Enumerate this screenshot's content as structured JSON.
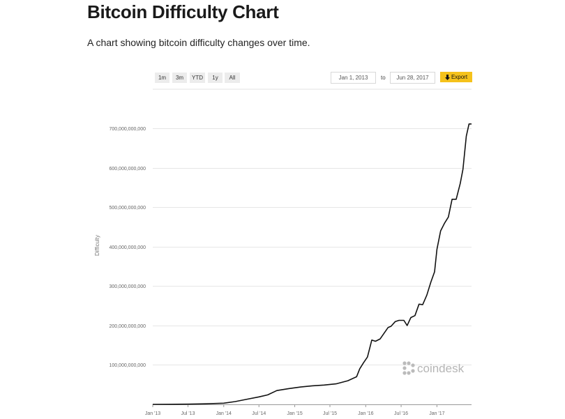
{
  "header": {
    "title": "Bitcoin Difficulty Chart",
    "subtitle": "A chart showing bitcoin difficulty changes over time."
  },
  "controls": {
    "ranges": [
      "1m",
      "3m",
      "YTD",
      "1y",
      "All"
    ],
    "date_from": "Jan 1, 2013",
    "to_label": "to",
    "date_to": "Jun 28, 2017",
    "export_label": "Export",
    "export_color": "#f5c21b"
  },
  "watermark": {
    "text": "coindesk",
    "icon": "coindesk-logo-icon"
  },
  "chart_data": {
    "type": "line",
    "title": "",
    "xlabel": "",
    "ylabel": "Difficulty",
    "ylim": [
      0,
      700000000000
    ],
    "yticks": [
      100000000000,
      200000000000,
      300000000000,
      400000000000,
      500000000000,
      600000000000,
      700000000000
    ],
    "ytick_labels": [
      "100,000,000,000",
      "200,000,000,000",
      "300,000,000,000",
      "400,000,000,000",
      "500,000,000,000",
      "600,000,000,000",
      "700,000,000,000"
    ],
    "xlim": [
      "2013-01-01",
      "2017-06-28"
    ],
    "xticks": [
      "2013-01-01",
      "2013-07-01",
      "2014-01-01",
      "2014-07-01",
      "2015-01-01",
      "2015-07-01",
      "2016-01-01",
      "2016-07-01",
      "2017-01-01"
    ],
    "xtick_labels": [
      "Jan '13",
      "Jul '13",
      "Jan '14",
      "Jul '14",
      "Jan '15",
      "Jul '15",
      "Jan '16",
      "Jul '16",
      "Jan '17"
    ],
    "grid": true,
    "line_color": "#111111",
    "series": [
      {
        "x": [
          "2013-01-01",
          "2013-04-01",
          "2013-07-01",
          "2013-10-01",
          "2014-01-01",
          "2014-03-01",
          "2014-05-01",
          "2014-07-01",
          "2014-08-15",
          "2014-10-01",
          "2014-12-01",
          "2015-02-01",
          "2015-04-01",
          "2015-06-01",
          "2015-08-01",
          "2015-10-01",
          "2015-11-15",
          "2015-12-01",
          "2015-12-20",
          "2016-01-10",
          "2016-02-01",
          "2016-02-20",
          "2016-03-15",
          "2016-04-01",
          "2016-04-25",
          "2016-05-10",
          "2016-06-01",
          "2016-06-20",
          "2016-07-15",
          "2016-08-01",
          "2016-08-20",
          "2016-09-10",
          "2016-10-01",
          "2016-10-20",
          "2016-11-10",
          "2016-12-01",
          "2016-12-20",
          "2017-01-01",
          "2017-01-20",
          "2017-02-10",
          "2017-03-01",
          "2017-03-20",
          "2017-04-10",
          "2017-05-01",
          "2017-05-15",
          "2017-06-01",
          "2017-06-15",
          "2017-06-28"
        ],
        "y": [
          0,
          100000000.0,
          500000000.0,
          1500000000.0,
          3000000000.0,
          7000000000.0,
          13000000000.0,
          19000000000.0,
          24000000000.0,
          35000000000.0,
          40000000000.0,
          44000000000.0,
          47000000000.0,
          49000000000.0,
          52000000000.0,
          60000000000.0,
          70000000000.0,
          90000000000.0,
          105000000000.0,
          120000000000.0,
          163000000000.0,
          160000000000.0,
          166000000000.0,
          178000000000.0,
          195000000000.0,
          198000000000.0,
          210000000000.0,
          213000000000.0,
          213000000000.0,
          200000000000.0,
          220000000000.0,
          225000000000.0,
          254000000000.0,
          253000000000.0,
          277000000000.0,
          310000000000.0,
          336000000000.0,
          393000000000.0,
          440000000000.0,
          460000000000.0,
          475000000000.0,
          520000000000.0,
          520000000000.0,
          560000000000.0,
          596000000000.0,
          680000000000.0,
          711000000000.0,
          711000000000.0
        ]
      }
    ]
  }
}
